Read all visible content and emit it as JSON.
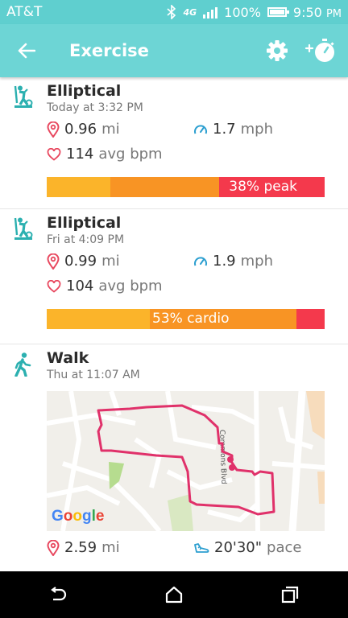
{
  "status": {
    "carrier": "AT&T",
    "battery": "100%",
    "time": "9:50",
    "ampm": "PM"
  },
  "header": {
    "title": "Exercise"
  },
  "activities": [
    {
      "name": "Elliptical",
      "when": "Today at 3:32 PM",
      "distance": "0.96",
      "distance_unit": "mi",
      "speed": "1.7",
      "speed_unit": "mph",
      "bpm": "114",
      "bpm_unit": "avg bpm",
      "zone_label": "38% peak",
      "zones": [
        0.23,
        0.39,
        0.38
      ]
    },
    {
      "name": "Elliptical",
      "when": "Fri at 4:09 PM",
      "distance": "0.99",
      "distance_unit": "mi",
      "speed": "1.9",
      "speed_unit": "mph",
      "bpm": "104",
      "bpm_unit": "avg bpm",
      "zone_label": "53% cardio",
      "zones": [
        0.37,
        0.53,
        0.1
      ]
    },
    {
      "name": "Walk",
      "when": "Thu at 11:07 AM",
      "map_street": "Commons Blvd",
      "map_logo": "Google",
      "distance": "2.59",
      "distance_unit": "mi",
      "pace": "20'30\"",
      "pace_unit": "pace"
    }
  ],
  "colors": {
    "teal": "#6dd5d5",
    "fatburn": "#fbb42a",
    "cardio": "#f89424",
    "peak": "#f4394c",
    "route": "#e0316a",
    "icon": "#2cb0b0"
  }
}
